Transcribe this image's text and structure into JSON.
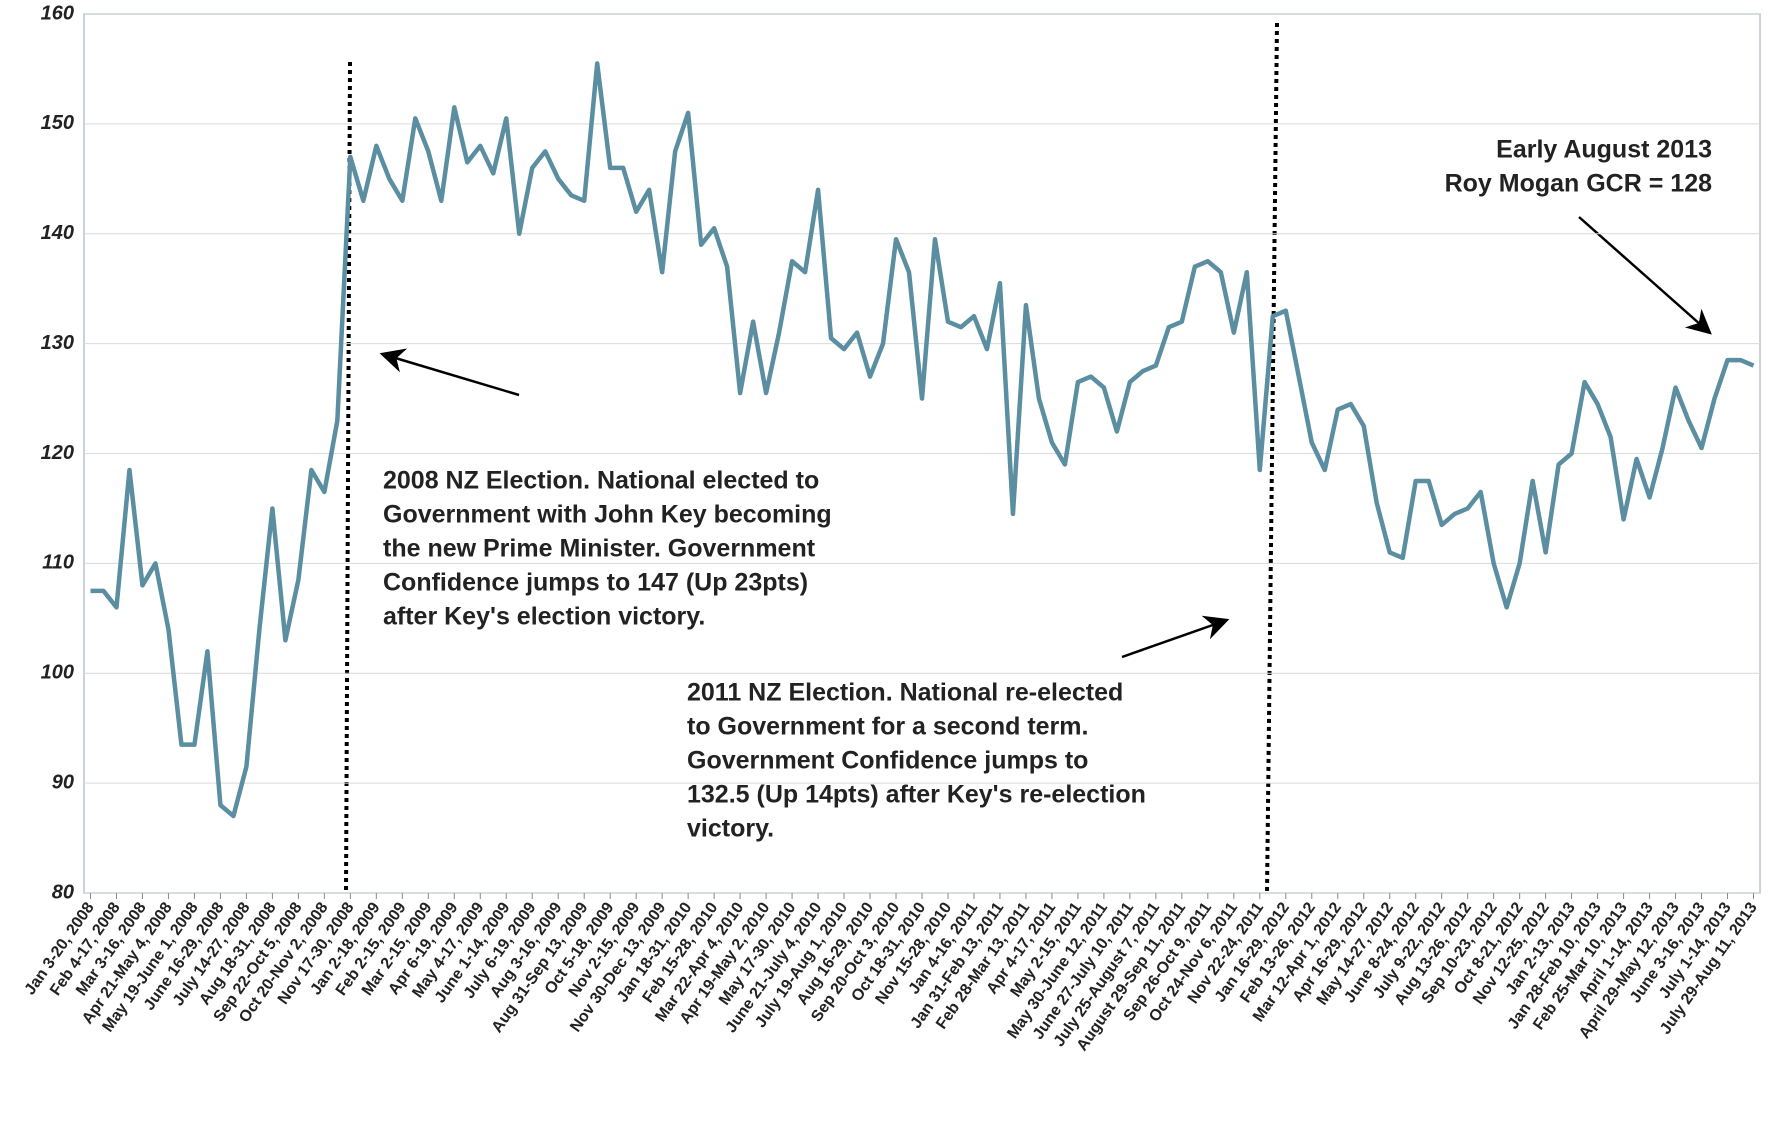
{
  "chart_data": {
    "type": "line",
    "categories": [
      "Jan 3-20, 2008",
      null,
      "Feb 4-17, 2008",
      null,
      "Mar 3-16, 2008",
      null,
      "Apr 21-May 4, 2008",
      null,
      "May 19-June 1, 2008",
      null,
      "June 16-29, 2008",
      null,
      "July 14-27, 2008",
      null,
      "Aug 18-31, 2008",
      null,
      "Sep 22-Oct 5, 2008",
      null,
      "Oct 20-Nov 2, 2008",
      null,
      "Nov 17-30, 2008",
      null,
      "Jan 2-18, 2009",
      null,
      "Feb 2-15, 2009",
      null,
      "Mar 2-15, 2009",
      null,
      "Apr 6-19, 2009",
      null,
      "May 4-17, 2009",
      null,
      "June 1-14, 2009",
      null,
      "July 6-19, 2009",
      null,
      "Aug 3-16, 2009",
      null,
      "Aug 31-Sep 13, 2009",
      null,
      "Oct 5-18, 2009",
      null,
      "Nov 2-15, 2009",
      null,
      "Nov 30-Dec 13, 2009",
      null,
      "Jan 18-31, 2010",
      null,
      "Feb 15-28, 2010",
      null,
      "Mar 22-Apr 4, 2010",
      null,
      "Apr 19-May 2, 2010",
      null,
      "May 17-30, 2010",
      null,
      "June 21-July 4, 2010",
      null,
      "July 19-Aug 1, 2010",
      null,
      "Aug 16-29, 2010",
      null,
      "Sep 20-Oct 3, 2010",
      null,
      "Oct 18-31, 2010",
      null,
      "Nov 15-28, 2010",
      null,
      "Jan 4-16, 2011",
      null,
      "Jan 31-Feb 13, 2011",
      null,
      "Feb 28-Mar 13, 2011",
      null,
      "Apr 4-17, 2011",
      null,
      "May 2-15, 2011",
      null,
      "May 30-June 12, 2011",
      null,
      "June 27-July 10, 2011",
      null,
      "July 25-August 7, 2011",
      null,
      "August 29-Sep 11, 2011",
      null,
      "Sep 26-Oct 9, 2011",
      null,
      "Oct 24-Nov 6, 2011",
      null,
      "Nov 22-24, 2011",
      null,
      "Jan 16-29, 2012",
      null,
      "Feb 13-26, 2012",
      null,
      "Mar 12-Apr 1, 2012",
      null,
      "Apr 16-29, 2012",
      null,
      "May 14-27, 2012",
      null,
      "June 8-24, 2012",
      null,
      "July 9-22, 2012",
      null,
      "Aug 13-26, 2012",
      null,
      "Sep 10-23, 2012",
      null,
      "Oct 8-21, 2012",
      null,
      "Nov 12-25, 2012",
      null,
      "Jan 2-13, 2013",
      null,
      "Jan 28-Feb 10, 2013",
      null,
      "Feb 25-Mar 10, 2013",
      null,
      "April 1-14, 2013",
      null,
      "April 29-May 12, 2013",
      null,
      "June 3-16, 2013",
      null,
      "July 1-14, 2013",
      null,
      "July 29-Aug 11, 2013"
    ],
    "values": [
      107.5,
      107.5,
      106,
      118.5,
      108,
      110,
      104,
      93.5,
      93.5,
      102,
      88,
      87,
      91.5,
      104,
      115,
      103,
      108.5,
      118.5,
      116.5,
      123,
      147,
      143,
      148,
      145,
      143,
      150.5,
      147.5,
      143,
      151.5,
      146.5,
      148,
      145.5,
      150.5,
      140,
      146,
      147.5,
      145,
      143.5,
      143,
      155.5,
      146,
      146,
      142,
      144,
      136.5,
      147.5,
      151,
      139,
      140.5,
      137,
      125.5,
      132,
      125.5,
      131,
      137.5,
      136.5,
      144,
      130.5,
      129.5,
      131,
      127,
      130,
      139.5,
      136.5,
      125,
      139.5,
      132,
      131.5,
      132.5,
      129.5,
      135.5,
      114.5,
      133.5,
      125,
      121,
      119,
      126.5,
      127,
      126,
      122,
      126.5,
      127.5,
      128,
      131.5,
      132,
      137,
      137.5,
      136.5,
      131,
      136.5,
      118.5,
      132.5,
      133,
      127,
      121,
      118.5,
      124,
      124.5,
      122.5,
      115.5,
      111,
      110.5,
      117.5,
      117.5,
      113.5,
      114.5,
      115,
      116.5,
      110,
      106,
      110,
      117.5,
      111,
      119,
      120,
      126.5,
      124.5,
      121.5,
      114,
      119.5,
      116,
      120.5,
      126,
      123,
      120.5,
      125,
      128.5,
      128.5,
      128
    ],
    "color": "#5a8ea0",
    "ylim": [
      80,
      160
    ],
    "yticks": [
      80,
      90,
      100,
      110,
      120,
      130,
      140,
      150,
      160
    ],
    "grid": true,
    "annotations": [
      {
        "lines": [
          "2008 NZ Election. National elected to",
          "Government with John Key becoming",
          "the new Prime Minister. Government",
          "Confidence jumps to 147 (Up 23pts)",
          "after Key's election victory."
        ]
      },
      {
        "lines": [
          "2011 NZ Election. National re-elected",
          "to Government for a second term.",
          "Government Confidence jumps to",
          "132.5 (Up 14pts) after Key's re-election",
          "victory."
        ]
      },
      {
        "lines": [
          "Early August 2013",
          "Roy Mogan GCR = 128"
        ]
      }
    ]
  }
}
